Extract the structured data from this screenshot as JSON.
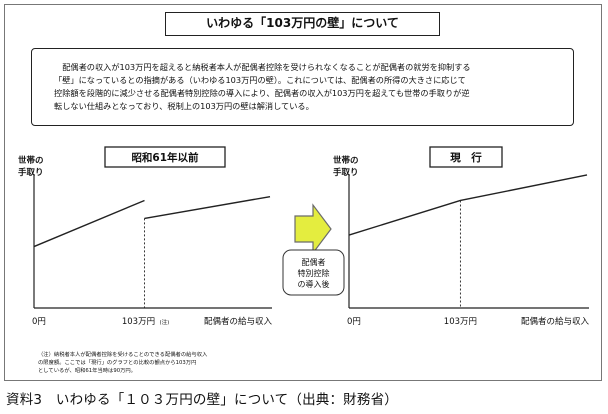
{
  "title": "いわゆる「103万円の壁」について",
  "description": {
    "line1": "配偶者の収入が103万円を超えると納税者本人が配偶者控除を受けられなくなることが配偶者の就労を抑制する",
    "line2": "「壁」になっているとの指摘がある（いわゆる103万円の壁）。これについては、配偶者の所得の大きさに応じて",
    "line3": "控除額を段階的に減少させる配偶者特別控除の導入により、配偶者の収入が103万円を超えても世帯の手取りが逆",
    "line4": "転しない仕組みとなっており、税制上の103万円の壁は解消している。"
  },
  "transition_label": [
    "配偶者",
    "特別控除",
    "の導入後"
  ],
  "footnote": {
    "line1": "（注）納税者本人が配偶者控除を受けることのできる配偶者の給与収入",
    "line2": "の限度額。ここでは「現行」のグラフとの比較の観点から103万円",
    "line3": "としているが、昭和61年当時は90万円。"
  },
  "caption": "資料3　いわゆる「１０３万円の壁」について（出典：財務省）",
  "colors": {
    "arrow_fill": "#e4ed3f",
    "arrow_stroke": "#6b6b6b",
    "line": "#222222"
  },
  "chart_data": [
    {
      "type": "line",
      "title": "昭和61年以前",
      "ylabel": "世帯の手取り",
      "xlabel": "配偶者の給与収入",
      "x_ticks": [
        {
          "value": 0,
          "label": "0円"
        },
        {
          "value": 103,
          "label": "103万円",
          "note": "(注)"
        }
      ],
      "xlim": [
        0,
        220
      ],
      "ylim": [
        0,
        100
      ],
      "series": [
        {
          "segments": [
            {
              "x": [
                0,
                103
              ],
              "y": [
                48,
                84
              ]
            },
            {
              "x": [
                103,
                220
              ],
              "y": [
                70,
                87
              ]
            }
          ]
        }
      ],
      "marker_x": 103,
      "grid": false
    },
    {
      "type": "line",
      "title": "現　行",
      "ylabel": "世帯の手取り",
      "xlabel": "配偶者の給与収入",
      "x_ticks": [
        {
          "value": 0,
          "label": "0円"
        },
        {
          "value": 103,
          "label": "103万円"
        }
      ],
      "xlim": [
        0,
        220
      ],
      "ylim": [
        0,
        100
      ],
      "series": [
        {
          "segments": [
            {
              "x": [
                0,
                103,
                220
              ],
              "y": [
                57,
                84,
                104
              ]
            }
          ]
        }
      ],
      "marker_x": 103,
      "grid": false
    }
  ]
}
